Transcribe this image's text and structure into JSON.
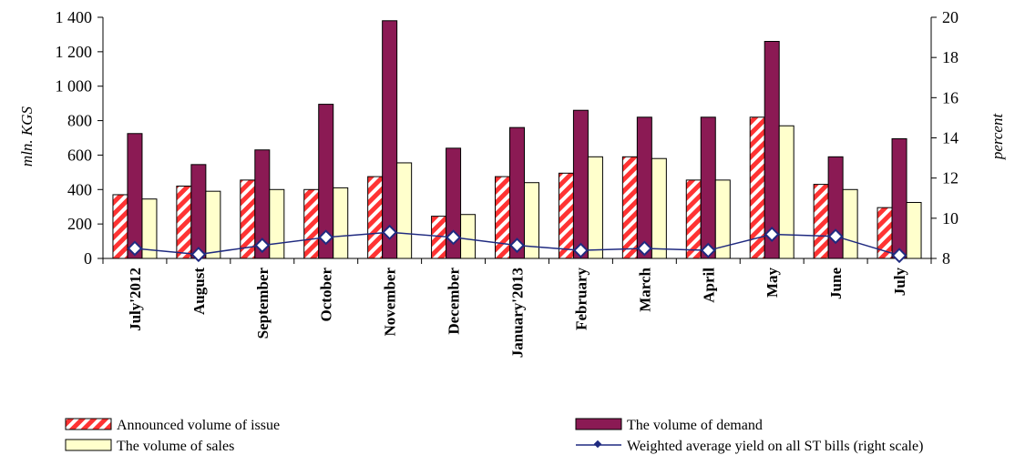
{
  "chart_data": {
    "type": "bar",
    "categories": [
      "July'2012",
      "August",
      "September",
      "October",
      "November",
      "December",
      "January'2013",
      "February",
      "March",
      "April",
      "May",
      "June",
      "July"
    ],
    "series": [
      {
        "name": "Announced volume of issue",
        "type": "bar",
        "axis": "left",
        "color": "#ff3333",
        "pattern": "diagonal-stripes",
        "values": [
          370,
          420,
          455,
          400,
          475,
          245,
          475,
          495,
          590,
          455,
          820,
          430,
          295
        ]
      },
      {
        "name": "The volume of demand",
        "type": "bar",
        "axis": "left",
        "color": "#8b1a54",
        "values": [
          725,
          545,
          630,
          895,
          1380,
          640,
          760,
          860,
          820,
          820,
          1260,
          590,
          695
        ]
      },
      {
        "name": "The volume of sales",
        "type": "bar",
        "axis": "left",
        "color": "#ffffcc",
        "values": [
          345,
          390,
          400,
          410,
          555,
          255,
          440,
          590,
          580,
          455,
          770,
          400,
          325
        ]
      },
      {
        "name": "Weighted average yield on all ST bills (right scale)",
        "type": "line",
        "axis": "right",
        "color": "#1f2a80",
        "values": [
          8.5,
          8.2,
          8.65,
          9.05,
          9.3,
          9.05,
          8.65,
          8.4,
          8.5,
          8.4,
          9.2,
          9.1,
          8.15
        ]
      }
    ],
    "ylabel": "mln. KGS",
    "y2label": "percent",
    "ylim": [
      0,
      1400
    ],
    "y2lim": [
      8,
      20
    ],
    "yticks": [
      "0",
      "200",
      "400",
      "600",
      "800",
      "1 000",
      "1 200",
      "1 400"
    ],
    "y2ticks": [
      "8",
      "10",
      "12",
      "14",
      "16",
      "18",
      "20"
    ],
    "grid": false,
    "legend_position": "bottom"
  }
}
